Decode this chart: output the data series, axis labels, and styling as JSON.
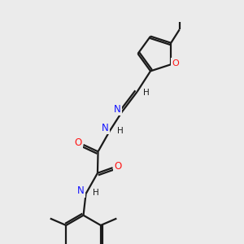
{
  "background_color": "#ebebeb",
  "bond_color": "#1a1a1a",
  "N_color": "#1414ff",
  "O_color": "#ff1414",
  "C_color": "#1a1a1a",
  "figsize": [
    3.0,
    3.0
  ],
  "dpi": 100,
  "xlim": [
    0,
    10
  ],
  "ylim": [
    0,
    10
  ]
}
